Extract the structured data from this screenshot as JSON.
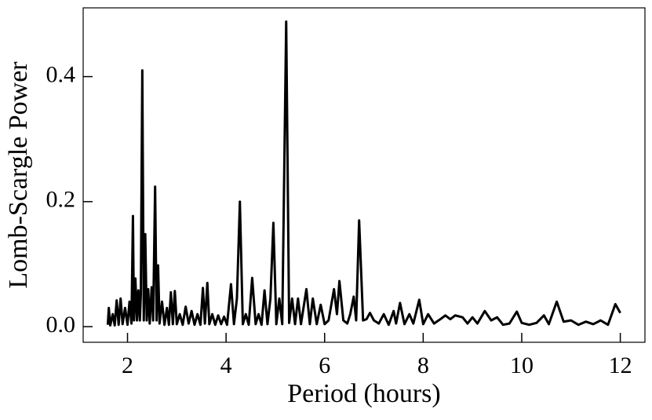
{
  "chart_data": {
    "type": "line",
    "x_label": "Period (hours)",
    "y_label": "Lomb-Scargle Power",
    "xlim": [
      1.1,
      12.5
    ],
    "ylim": [
      -0.025,
      0.51
    ],
    "xticks": [
      2,
      4,
      6,
      8,
      10,
      12
    ],
    "yticks": [
      {
        "value": 0,
        "label": "0.0"
      },
      {
        "value": 0.2,
        "label": "0.2"
      },
      {
        "value": 0.4,
        "label": "0.4"
      }
    ],
    "color": "#000000",
    "x": [
      1.6,
      1.62,
      1.65,
      1.7,
      1.74,
      1.78,
      1.82,
      1.86,
      1.9,
      1.95,
      2.0,
      2.04,
      2.08,
      2.11,
      2.13,
      2.16,
      2.19,
      2.22,
      2.25,
      2.27,
      2.3,
      2.33,
      2.36,
      2.39,
      2.42,
      2.45,
      2.49,
      2.52,
      2.56,
      2.59,
      2.62,
      2.65,
      2.7,
      2.75,
      2.8,
      2.84,
      2.88,
      2.92,
      2.96,
      3.0,
      3.06,
      3.12,
      3.18,
      3.24,
      3.3,
      3.36,
      3.42,
      3.48,
      3.53,
      3.57,
      3.62,
      3.66,
      3.72,
      3.78,
      3.84,
      3.9,
      3.96,
      4.02,
      4.1,
      4.16,
      4.22,
      4.28,
      4.34,
      4.4,
      4.46,
      4.53,
      4.6,
      4.66,
      4.72,
      4.78,
      4.84,
      4.9,
      4.96,
      5.02,
      5.08,
      5.14,
      5.22,
      5.28,
      5.34,
      5.4,
      5.46,
      5.52,
      5.63,
      5.7,
      5.76,
      5.84,
      5.92,
      6.0,
      6.08,
      6.19,
      6.25,
      6.3,
      6.38,
      6.46,
      6.52,
      6.59,
      6.64,
      6.7,
      6.78,
      6.85,
      6.92,
      7.0,
      7.1,
      7.2,
      7.3,
      7.4,
      7.45,
      7.53,
      7.62,
      7.72,
      7.8,
      7.92,
      8.0,
      8.1,
      8.22,
      8.35,
      8.45,
      8.55,
      8.65,
      8.8,
      8.9,
      9.0,
      9.1,
      9.25,
      9.38,
      9.5,
      9.62,
      9.75,
      9.9,
      10.0,
      10.15,
      10.3,
      10.45,
      10.55,
      10.71,
      10.85,
      11.0,
      11.15,
      11.3,
      11.45,
      11.6,
      11.75,
      11.9,
      12.0
    ],
    "values": [
      0.003,
      0.03,
      0.002,
      0.02,
      0.002,
      0.042,
      0.003,
      0.045,
      0.004,
      0.03,
      0.003,
      0.04,
      0.005,
      0.177,
      0.01,
      0.077,
      0.01,
      0.058,
      0.01,
      0.05,
      0.41,
      0.01,
      0.148,
      0.01,
      0.06,
      0.005,
      0.063,
      0.01,
      0.224,
      0.01,
      0.098,
      0.005,
      0.04,
      0.003,
      0.03,
      0.003,
      0.055,
      0.004,
      0.057,
      0.004,
      0.02,
      0.003,
      0.032,
      0.005,
      0.025,
      0.003,
      0.02,
      0.003,
      0.062,
      0.005,
      0.07,
      0.004,
      0.02,
      0.003,
      0.018,
      0.004,
      0.016,
      0.003,
      0.068,
      0.004,
      0.045,
      0.2,
      0.004,
      0.02,
      0.003,
      0.078,
      0.004,
      0.02,
      0.003,
      0.058,
      0.004,
      0.045,
      0.166,
      0.004,
      0.045,
      0.004,
      0.488,
      0.006,
      0.045,
      0.004,
      0.045,
      0.004,
      0.06,
      0.004,
      0.045,
      0.004,
      0.035,
      0.004,
      0.01,
      0.06,
      0.02,
      0.073,
      0.01,
      0.005,
      0.02,
      0.048,
      0.01,
      0.17,
      0.01,
      0.012,
      0.022,
      0.01,
      0.005,
      0.02,
      0.003,
      0.025,
      0.005,
      0.038,
      0.004,
      0.02,
      0.005,
      0.043,
      0.004,
      0.02,
      0.005,
      0.012,
      0.018,
      0.012,
      0.018,
      0.015,
      0.005,
      0.015,
      0.005,
      0.025,
      0.01,
      0.015,
      0.003,
      0.005,
      0.024,
      0.006,
      0.003,
      0.006,
      0.018,
      0.004,
      0.04,
      0.008,
      0.01,
      0.003,
      0.008,
      0.004,
      0.01,
      0.003,
      0.036,
      0.022
    ]
  }
}
